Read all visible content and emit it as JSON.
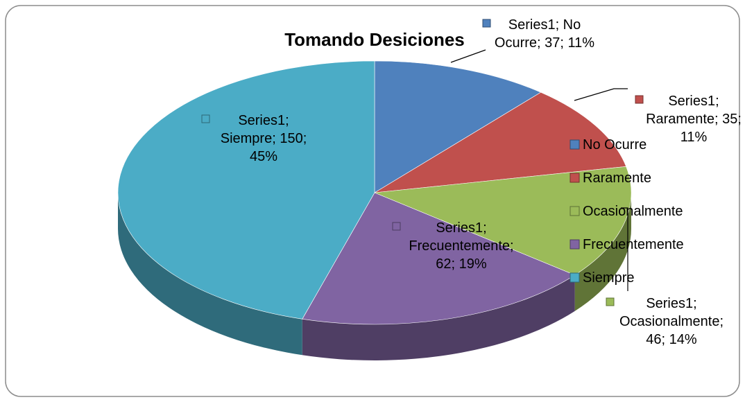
{
  "chart_data": {
    "type": "pie",
    "title": "Tomando Desiciones",
    "series_name": "Series1",
    "categories": [
      "No Ocurre",
      "Raramente",
      "Ocasionalmente",
      "Frecuentemente",
      "Siempre"
    ],
    "values": [
      37,
      35,
      46,
      62,
      150
    ],
    "value_labels": [
      "Series1; No Ocurre; 37; 11%",
      "Series1; Raramente; 35; 11%",
      "Series1; Ocasionalmente; 46; 14%",
      "Series1; Frecuentemente; 62; 19%",
      "Series1; Siempre; 150; 45%"
    ],
    "colors": [
      "#4f81bd",
      "#c0504d",
      "#9bbb59",
      "#8064a2",
      "#4bacc6"
    ],
    "legend": "right"
  }
}
